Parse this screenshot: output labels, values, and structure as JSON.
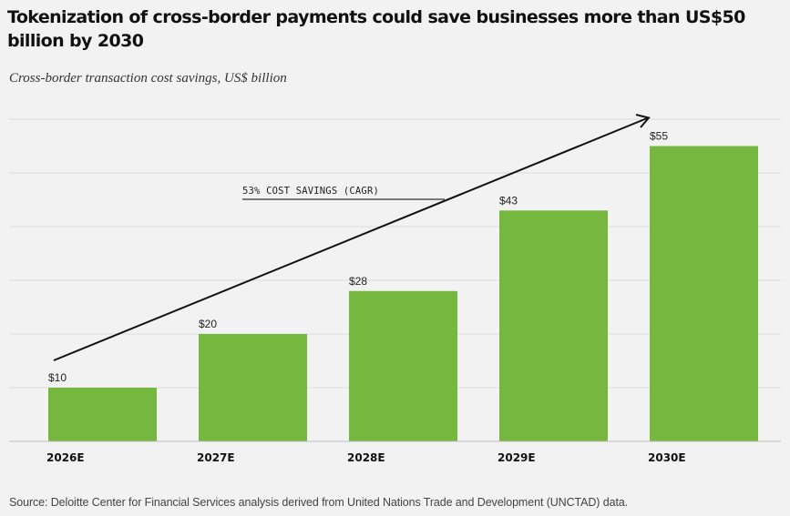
{
  "chart_data": {
    "type": "bar",
    "title": "Tokenization of cross-border payments could save businesses more than US$50 billion by 2030",
    "subtitle": "Cross-border transaction cost savings, US$ billion",
    "categories": [
      "2026E",
      "2027E",
      "2028E",
      "2029E",
      "2030E"
    ],
    "values": [
      10,
      20,
      28,
      43,
      55
    ],
    "value_labels": [
      "$10",
      "$20",
      "$28",
      "$43",
      "$55"
    ],
    "ylim": [
      0,
      60
    ],
    "grid": true,
    "bar_color": "#76b83f",
    "annotation": "53% COST SAVINGS (CAGR)",
    "source": "Source: Deloitte Center for Financial Services analysis derived from United Nations Trade and Development (UNCTAD) data."
  }
}
